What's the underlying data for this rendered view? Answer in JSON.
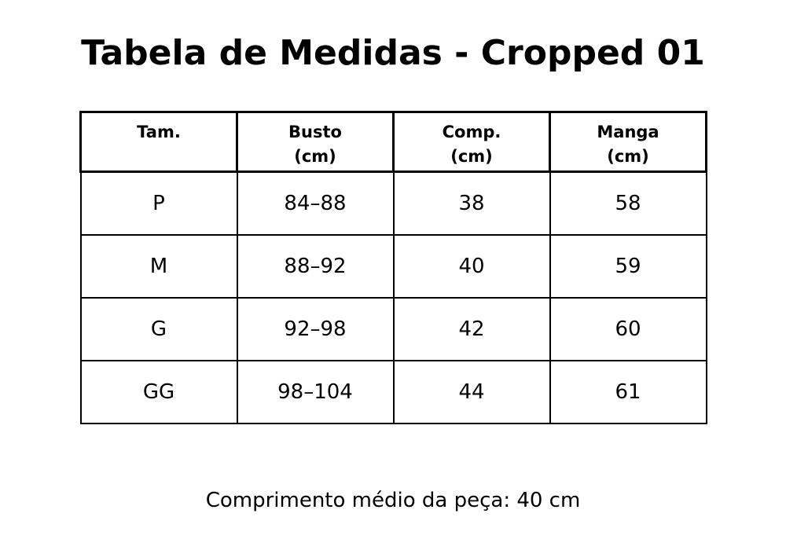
{
  "title": "Tabela de Medidas - Cropped 01",
  "table": {
    "headers": [
      [
        "Tam."
      ],
      [
        "Busto",
        "(cm)"
      ],
      [
        "Comp.",
        "(cm)"
      ],
      [
        "Manga",
        "(cm)"
      ]
    ],
    "rows": [
      [
        "P",
        "84–88",
        "38",
        "58"
      ],
      [
        "M",
        "88–92",
        "40",
        "59"
      ],
      [
        "G",
        "92–98",
        "42",
        "60"
      ],
      [
        "GG",
        "98–104",
        "44",
        "61"
      ]
    ]
  },
  "footer": "Comprimento médio da peça: 40 cm"
}
